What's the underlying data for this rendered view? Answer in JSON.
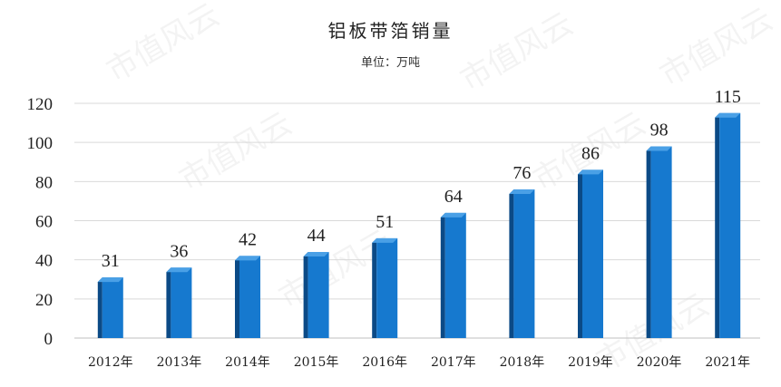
{
  "watermark": "市值风云",
  "chart_data": {
    "type": "bar",
    "title": "铝板带箔销量",
    "subtitle": "单位：万吨",
    "categories": [
      "2012年",
      "2013年",
      "2014年",
      "2015年",
      "2016年",
      "2017年",
      "2018年",
      "2019年",
      "2020年",
      "2021年"
    ],
    "values": [
      31,
      36,
      42,
      44,
      51,
      64,
      76,
      86,
      98,
      115
    ],
    "y_ticks": [
      0,
      20,
      40,
      60,
      80,
      100,
      120
    ],
    "ylim": [
      0,
      120
    ],
    "xlabel": "",
    "ylabel": "",
    "grid": true,
    "legend": "none",
    "colors": {
      "bar_front": "#1679cf",
      "bar_side": "#0b4a86",
      "bar_top": "#4aa0e6",
      "grid": "#d9d9d9",
      "axis": "#bfbfbf"
    }
  }
}
